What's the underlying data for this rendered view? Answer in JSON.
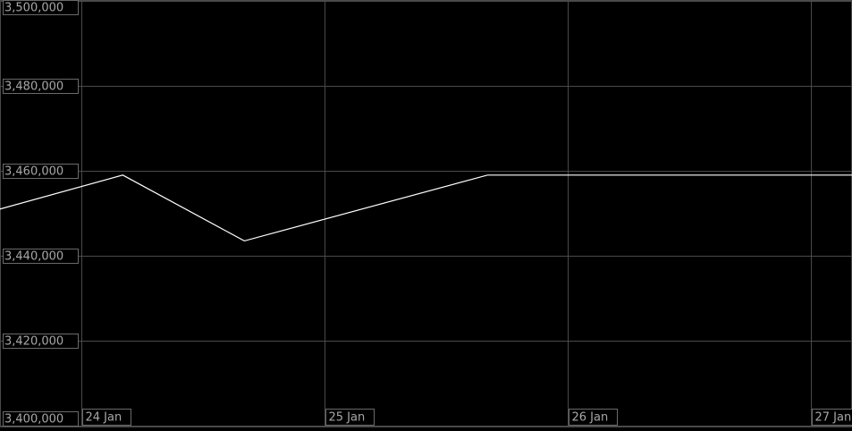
{
  "chart_data": {
    "type": "line",
    "x": [
      23.665,
      24.17,
      24.67,
      25.67,
      27.169
    ],
    "series": [
      {
        "color": "#ffffff",
        "values": [
          3451000,
          3459000,
          3443500,
          3459000,
          3459000
        ]
      }
    ],
    "xlim": [
      23.665,
      27.169
    ],
    "xticks": [
      {
        "value": 24,
        "label": "24 Jan"
      },
      {
        "value": 25,
        "label": "25 Jan"
      },
      {
        "value": 26,
        "label": "26 Jan"
      },
      {
        "value": 27,
        "label": "27 Jan"
      }
    ],
    "ylim": [
      3400000,
      3500000
    ],
    "yticks": [
      {
        "value": 3400000,
        "label": "3,400,000"
      },
      {
        "value": 3420000,
        "label": "3,420,000"
      },
      {
        "value": 3440000,
        "label": "3,440,000"
      },
      {
        "value": 3460000,
        "label": "3,460,000"
      },
      {
        "value": 3480000,
        "label": "3,480,000"
      },
      {
        "value": 3500000,
        "label": "3,500,000"
      }
    ],
    "grid": true
  }
}
